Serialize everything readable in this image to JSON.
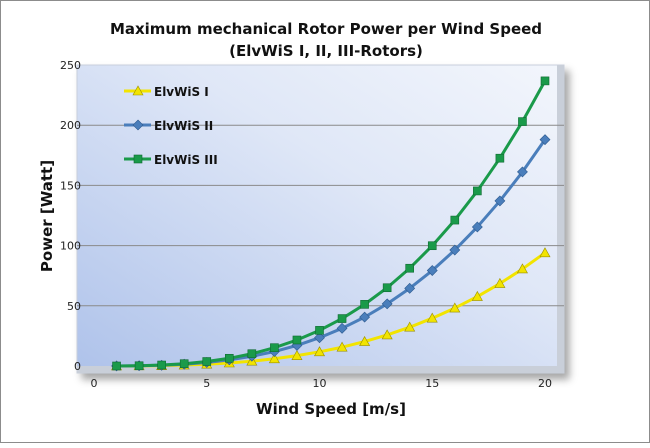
{
  "chart_data": {
    "type": "line",
    "title": "Maximum mechanical Rotor Power per Wind Speed",
    "subtitle": "(ElvWiS I, II, III-Rotors)",
    "xlabel": "Wind Speed [m/s]",
    "ylabel": "Power  [Watt]",
    "xlim": [
      0,
      20
    ],
    "ylim": [
      0,
      250
    ],
    "xticks": [
      0,
      5,
      10,
      15,
      20
    ],
    "yticks": [
      0,
      50,
      100,
      150,
      200,
      250
    ],
    "grid": "horizontal",
    "legend": "top-left",
    "x": [
      1,
      2,
      3,
      4,
      5,
      6,
      7,
      8,
      9,
      10,
      11,
      12,
      13,
      14,
      15,
      16,
      17,
      18,
      19,
      20
    ],
    "series": [
      {
        "name": "ElvWiS I",
        "color": "#f2e400",
        "marker": "triangle",
        "values": [
          0.0,
          0.1,
          0.3,
          0.8,
          1.5,
          2.5,
          4.0,
          6.0,
          8.6,
          11.8,
          15.6,
          20.3,
          25.8,
          32.2,
          39.7,
          48.1,
          57.7,
          68.5,
          80.6,
          94.0
        ]
      },
      {
        "name": "ElvWiS II",
        "color": "#4a7ebb",
        "marker": "diamond",
        "values": [
          0.0,
          0.2,
          0.6,
          1.5,
          2.9,
          5.1,
          8.1,
          12.0,
          17.1,
          23.5,
          31.3,
          40.6,
          51.6,
          64.5,
          79.3,
          96.3,
          115.5,
          137.1,
          161.2,
          188.0
        ]
      },
      {
        "name": "ElvWiS III",
        "color": "#1a9a4a",
        "marker": "square",
        "values": [
          0.0,
          0.2,
          0.8,
          1.9,
          3.7,
          6.4,
          10.2,
          15.2,
          21.6,
          29.6,
          39.4,
          51.2,
          65.0,
          81.2,
          99.9,
          121.2,
          145.4,
          172.6,
          203.0,
          236.8
        ]
      }
    ]
  }
}
